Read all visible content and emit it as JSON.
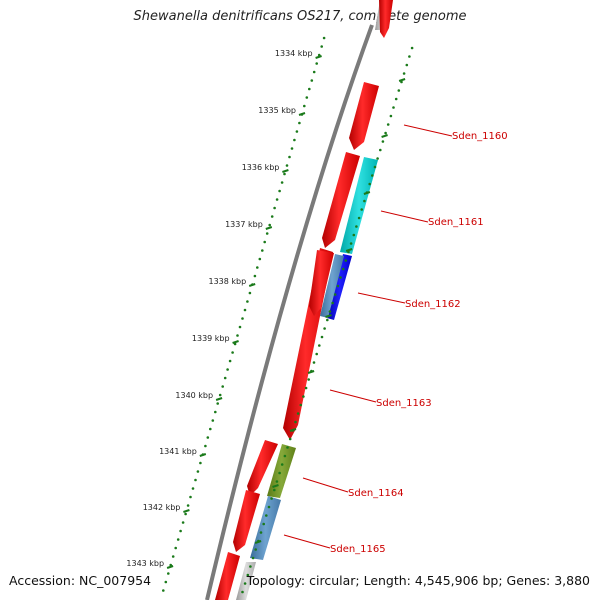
{
  "title": "Shewanella denitrificans OS217, complete genome",
  "accession": "Accession: NC_007954",
  "summary": "Topology: circular; Length: 4,545,906 bp; Genes: 3,880",
  "ticks": [
    {
      "label": "1334 kbp"
    },
    {
      "label": "1335 kbp"
    },
    {
      "label": "1336 kbp"
    },
    {
      "label": "1337 kbp"
    },
    {
      "label": "1338 kbp"
    },
    {
      "label": "1339 kbp"
    },
    {
      "label": "1340 kbp"
    },
    {
      "label": "1341 kbp"
    },
    {
      "label": "1342 kbp"
    },
    {
      "label": "1343 kbp"
    }
  ],
  "gene_labels": [
    "Sden_1160",
    "Sden_1161",
    "Sden_1162",
    "Sden_1163",
    "Sden_1164",
    "Sden_1165"
  ],
  "colors": {
    "gene": "#ff0000",
    "cyan": "#00cccc",
    "blue": "#0000ee",
    "steel": "#4f86b8",
    "olive": "#6b8e23",
    "tick": "#1a7a1a",
    "label": "#cc0000",
    "backbone": "#808080"
  }
}
